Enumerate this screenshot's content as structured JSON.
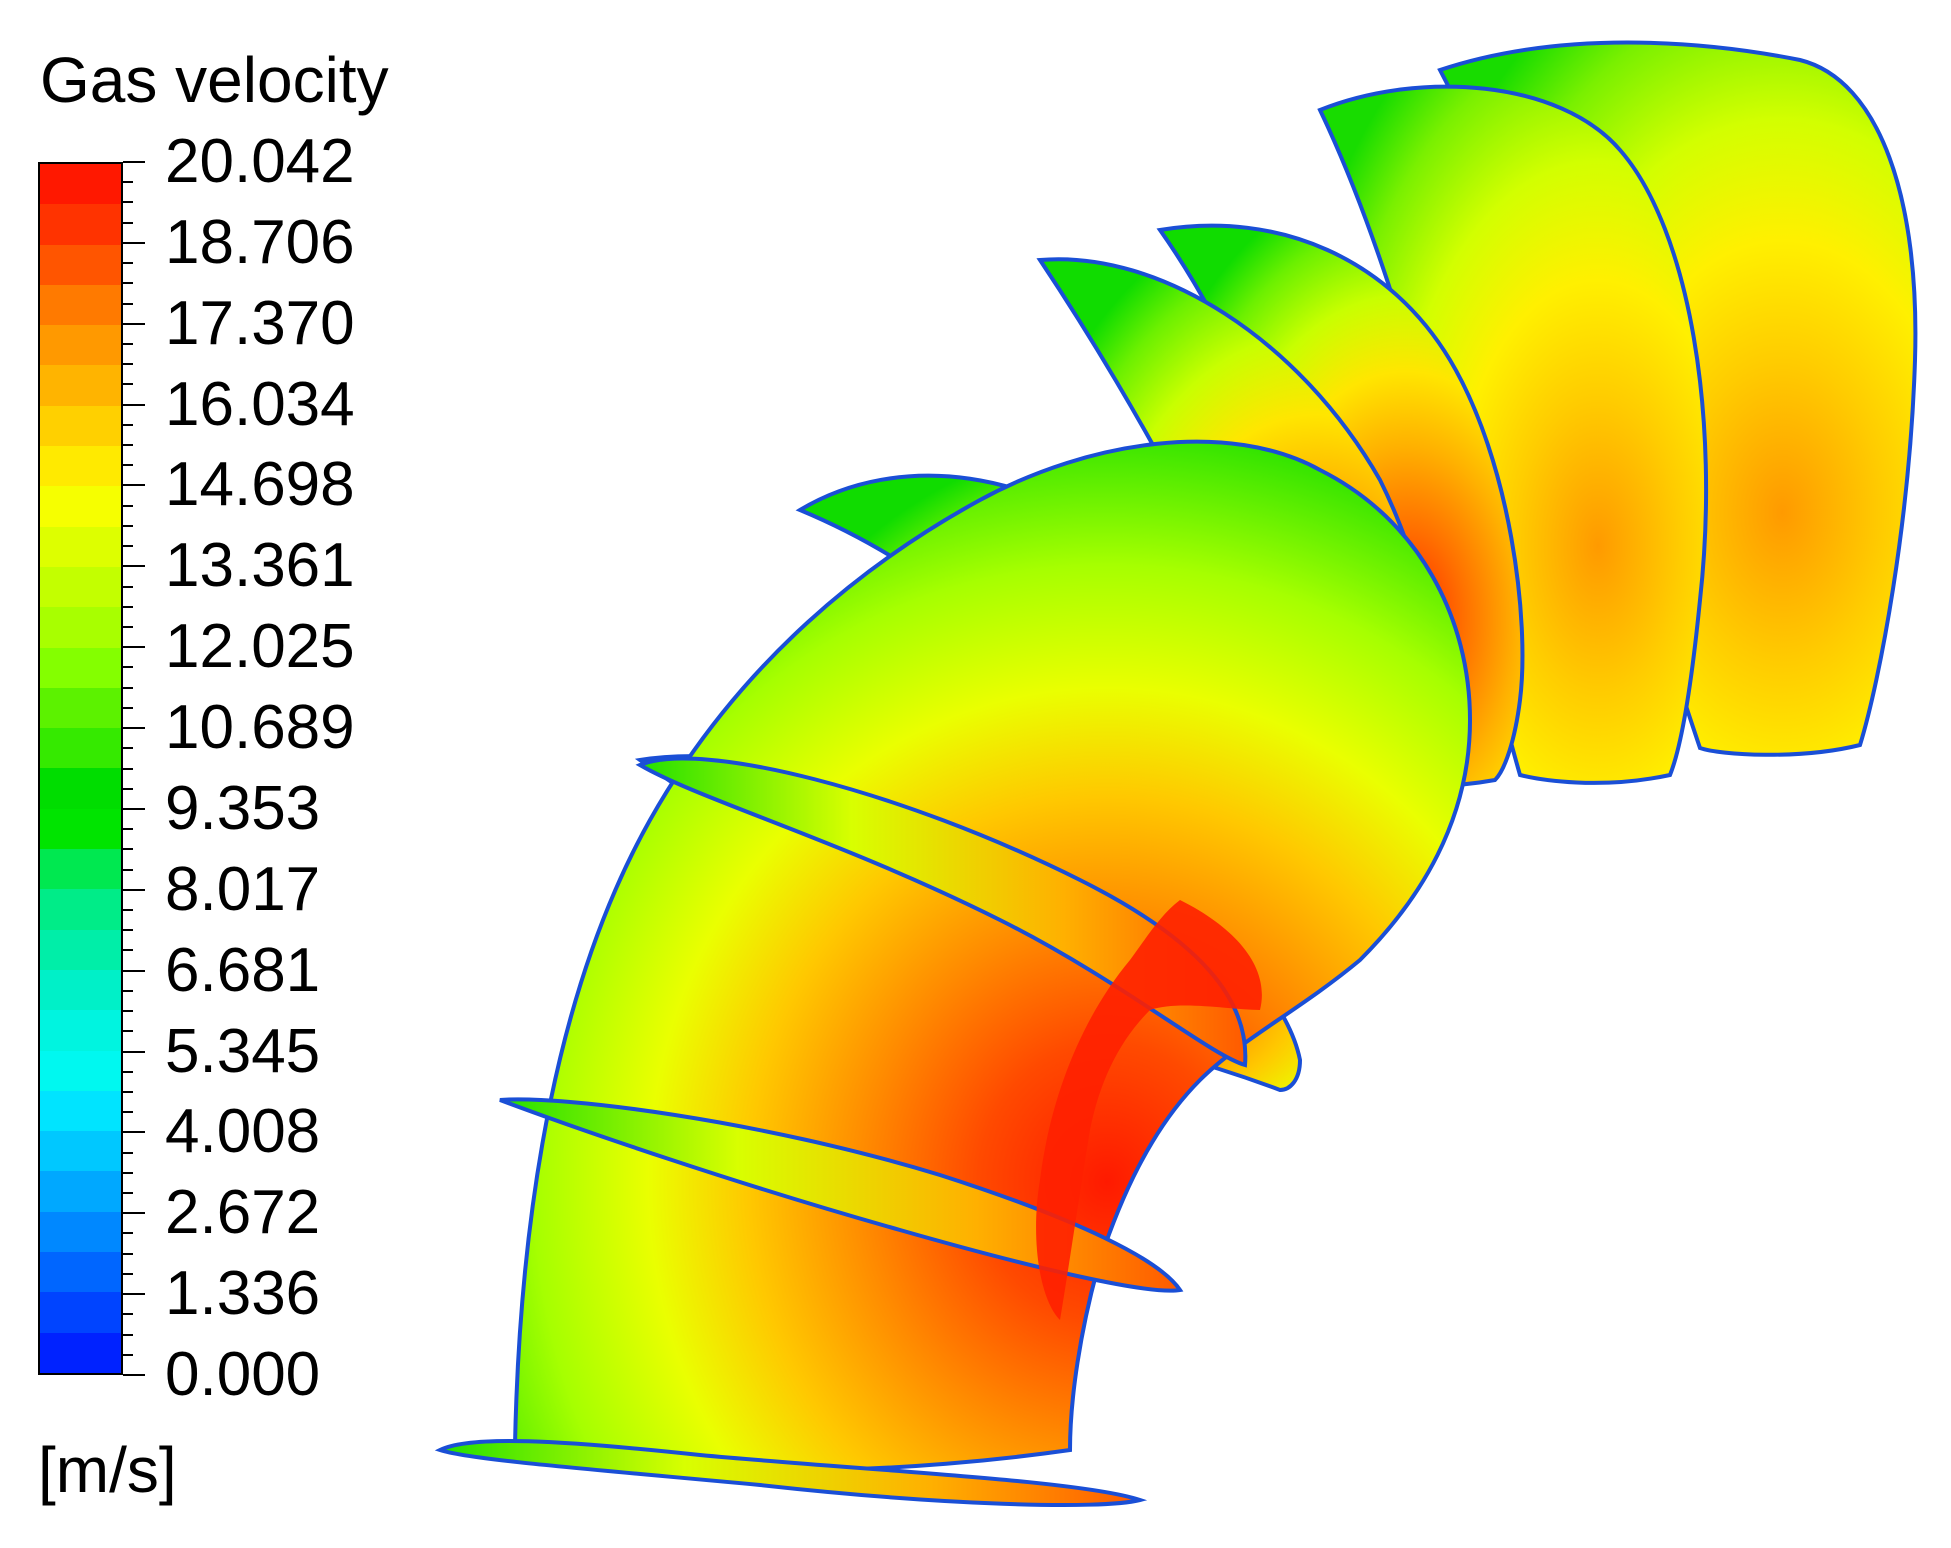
{
  "legend": {
    "title": "Gas velocity",
    "units": "[m/s]",
    "labels": [
      "20.042",
      "18.706",
      "17.370",
      "16.034",
      "14.698",
      "13.361",
      "12.025",
      "10.689",
      "9.353",
      "8.017",
      "6.681",
      "5.345",
      "4.008",
      "2.672",
      "1.336",
      "0.000"
    ],
    "min": 0.0,
    "max": 20.042,
    "band_colors": [
      "#ff1800",
      "#ff3300",
      "#ff5500",
      "#ff7a00",
      "#ff9900",
      "#ffb400",
      "#ffd000",
      "#ffea00",
      "#f6ff00",
      "#ddff00",
      "#c3ff00",
      "#a8ff00",
      "#84ff00",
      "#5cf200",
      "#35ea00",
      "#00dd00",
      "#00e400",
      "#00e850",
      "#00ec88",
      "#00eea8",
      "#00f0c8",
      "#00f4e0",
      "#00f8f0",
      "#00e4ff",
      "#00c8ff",
      "#00a8ff",
      "#0088ff",
      "#0066ff",
      "#0044ff",
      "#0022ff"
    ]
  },
  "colors": {
    "high": "#ff2200",
    "mid_high": "#ff8800",
    "mid": "#ffdd00",
    "mid_low": "#ccff00",
    "low": "#00dd00",
    "edge": "#1a4fd6"
  }
}
